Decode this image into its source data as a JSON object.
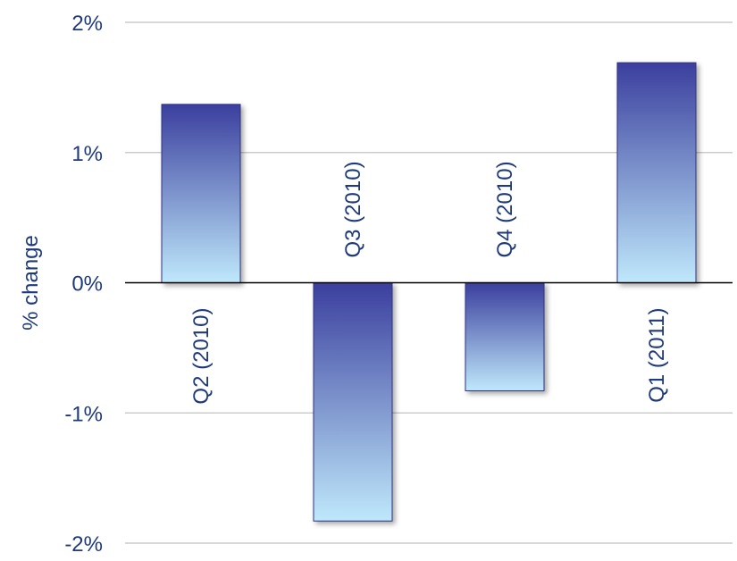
{
  "chart_data": {
    "type": "bar",
    "ylabel": "% change",
    "categories": [
      "Q2 (2010)",
      "Q3 (2010)",
      "Q4 (2010)",
      "Q1 (2011)"
    ],
    "values": [
      1.37,
      -1.83,
      -0.83,
      1.69
    ],
    "ylim": [
      -2,
      2
    ],
    "yticks": [
      2,
      1,
      0,
      -1,
      -2
    ],
    "ytick_labels": [
      "2%",
      "1%",
      "0%",
      "-1%",
      "-2%"
    ],
    "grid": true,
    "legend": "none",
    "colors": {
      "bar_top": "#3b3f9e",
      "bar_bottom": "#bfe8fb",
      "label": "#1f3a7a",
      "grid": "#cccccc",
      "zero_line": "#000000"
    }
  }
}
